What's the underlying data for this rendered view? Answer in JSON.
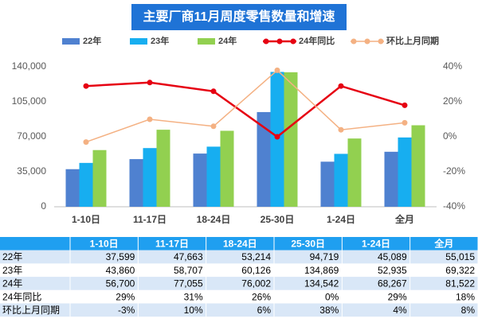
{
  "chart_data": {
    "type": "bar",
    "title": "主要厂商11月周度零售数量和增速",
    "categories": [
      "1-10日",
      "11-17日",
      "18-24日",
      "25-30日",
      "1-24日",
      "全月"
    ],
    "series": [
      {
        "name": "22年",
        "color": "#4f81d0",
        "values": [
          37599,
          47663,
          53214,
          94719,
          45089,
          55015
        ],
        "value_labels": [
          "37,599",
          "47,663",
          "53,214",
          "94,719",
          "45,089",
          "55,015"
        ]
      },
      {
        "name": "23年",
        "color": "#17aef0",
        "values": [
          43860,
          58707,
          60126,
          134869,
          52935,
          69322
        ],
        "value_labels": [
          "43,860",
          "58,707",
          "60,126",
          "134,869",
          "52,935",
          "69,322"
        ]
      },
      {
        "name": "24年",
        "color": "#92d050",
        "values": [
          56700,
          77055,
          76002,
          134542,
          68267,
          81522
        ],
        "value_labels": [
          "56,700",
          "77,055",
          "76,002",
          "134,542",
          "68,267",
          "81,522"
        ]
      },
      {
        "name": "24年同比",
        "type": "line",
        "axis": "y2",
        "color": "#e60012",
        "values": [
          29,
          31,
          26,
          0,
          29,
          18
        ],
        "value_labels": [
          "29%",
          "31%",
          "26%",
          "0%",
          "29%",
          "18%"
        ]
      },
      {
        "name": "环比上月同期",
        "type": "line",
        "axis": "y2",
        "color": "#f4b183",
        "values": [
          -3,
          10,
          6,
          38,
          4,
          8
        ],
        "value_labels": [
          "-3%",
          "10%",
          "6%",
          "38%",
          "4%",
          "8%"
        ]
      }
    ],
    "ylim": [
      0,
      140000
    ],
    "yticks": [
      0,
      {
        "value": 35000,
        "label": "35,000"
      },
      {
        "value": 70000,
        "label": "70,000"
      },
      {
        "value": 105000,
        "label": "105,000"
      },
      {
        "value": 140000,
        "label": "140,000"
      }
    ],
    "y2lim": [
      -40,
      40
    ],
    "y2ticks": [
      {
        "value": -40,
        "label": "-40%"
      },
      {
        "value": -20,
        "label": "-20%"
      },
      {
        "value": 0,
        "label": "0%"
      },
      {
        "value": 20,
        "label": "20%"
      },
      {
        "value": 40,
        "label": "40%"
      }
    ]
  }
}
